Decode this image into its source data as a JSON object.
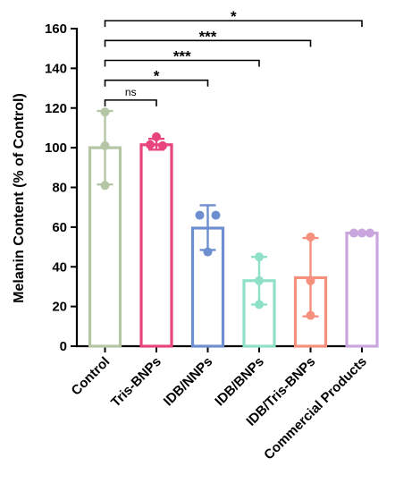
{
  "chart_data": {
    "type": "bar",
    "title": "",
    "xlabel": "",
    "ylabel": "Melanin Content  (% of Control)",
    "ylim": [
      0,
      160
    ],
    "yticks": [
      0,
      20,
      40,
      60,
      80,
      100,
      120,
      140,
      160
    ],
    "grid": false,
    "categories": [
      "Control",
      "Tris-BNPs",
      "IDB/NNPs",
      "IDB/BNPs",
      "IDB/Tris-BNPs",
      "Commercial Products"
    ],
    "values": [
      100,
      101.5,
      59.5,
      33,
      34.5,
      57
    ],
    "error_low": [
      81.5,
      99,
      48.5,
      21,
      15,
      56.5
    ],
    "error_high": [
      118.5,
      104.5,
      71,
      45,
      54.5,
      57.5
    ],
    "points": [
      [
        118,
        101,
        81
      ],
      [
        105.5,
        101.5,
        101
      ],
      [
        66,
        66,
        47.5
      ],
      [
        45,
        33,
        21
      ],
      [
        55,
        33,
        15.5
      ],
      [
        57,
        57,
        57
      ]
    ],
    "colors": [
      "#b4c6a6",
      "#e8457e",
      "#6e8fcf",
      "#8fe0c9",
      "#f4907c",
      "#c9a6de"
    ],
    "significance": [
      {
        "from": "Control",
        "to": "Tris-BNPs",
        "label": "ns",
        "y": 124
      },
      {
        "from": "Control",
        "to": "IDB/NNPs",
        "label": "*",
        "y": 134
      },
      {
        "from": "Control",
        "to": "IDB/BNPs",
        "label": "***",
        "y": 144
      },
      {
        "from": "Control",
        "to": "IDB/Tris-BNPs",
        "label": "***",
        "y": 154
      },
      {
        "from": "Control",
        "to": "Commercial Products",
        "label": "*",
        "y": 164
      }
    ]
  }
}
